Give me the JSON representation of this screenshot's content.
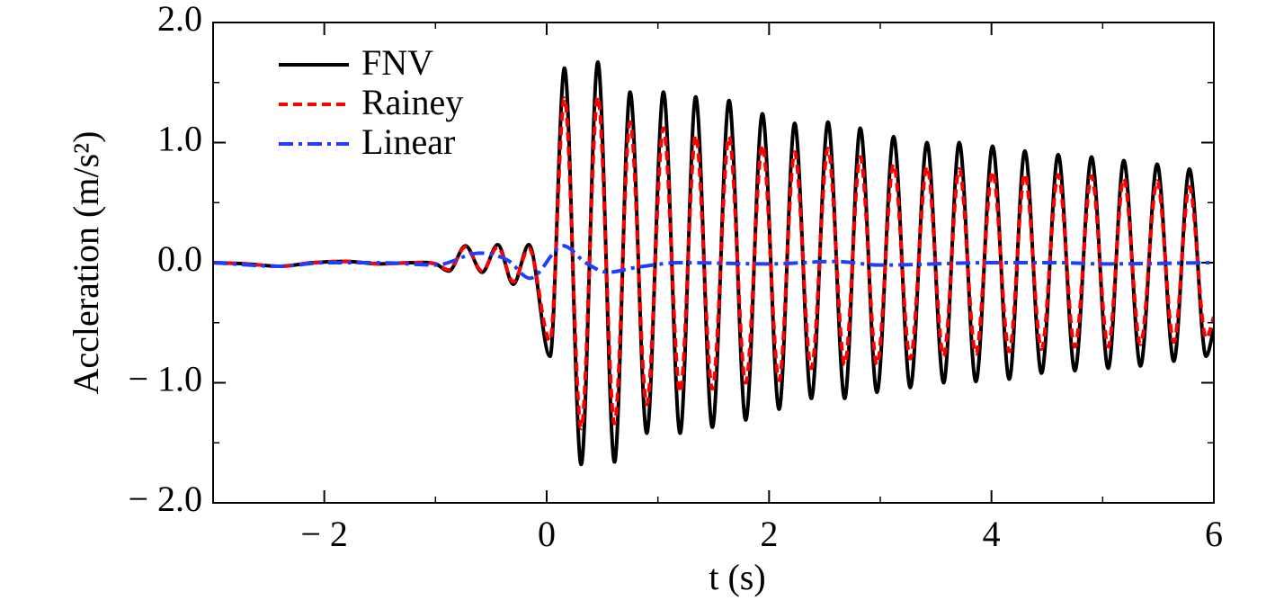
{
  "chart_data": {
    "type": "line",
    "xlabel": "t (s)",
    "ylabel": "Accleration (m/s²)",
    "xlim": [
      -3,
      6
    ],
    "ylim": [
      -2,
      2
    ],
    "xticks": [
      {
        "value": -2,
        "label": "− 2"
      },
      0,
      2,
      4,
      6
    ],
    "yticks": [
      {
        "value": -2,
        "label": "− 2.0"
      },
      {
        "value": -1,
        "label": "− 1.0"
      },
      {
        "value": 0,
        "label": "0.0"
      },
      {
        "value": 1,
        "label": "1.0"
      },
      {
        "value": 2,
        "label": "2.0"
      }
    ],
    "xminorticks": [
      -3,
      -1,
      1,
      3,
      5
    ],
    "yminorticks": [
      -1.5,
      -0.5,
      0.5,
      1.5
    ],
    "legend": "upper left",
    "series": [
      {
        "name": "FNV",
        "color": "#000000",
        "dash": "solid",
        "x": [
          -3,
          -2.7,
          -2.4,
          -2.1,
          -1.8,
          -1.5,
          -1.2,
          -1.0,
          -0.88,
          -0.73,
          -0.58,
          -0.44,
          -0.3,
          -0.16,
          0.03,
          0.16,
          0.31,
          0.46,
          0.61,
          0.75,
          0.9,
          1.05,
          1.2,
          1.34,
          1.49,
          1.64,
          1.79,
          1.94,
          2.09,
          2.23,
          2.38,
          2.53,
          2.68,
          2.82,
          2.97,
          3.12,
          3.27,
          3.42,
          3.57,
          3.71,
          3.86,
          4.01,
          4.16,
          4.3,
          4.45,
          4.6,
          4.75,
          4.9,
          5.05,
          5.19,
          5.34,
          5.49,
          5.64,
          5.78,
          5.93,
          6.0
        ],
        "values": [
          0,
          -0.01,
          -0.03,
          0,
          0.01,
          -0.01,
          0,
          -0.01,
          -0.07,
          0.14,
          -0.08,
          0.15,
          -0.18,
          0.15,
          -0.78,
          1.62,
          -1.68,
          1.67,
          -1.66,
          1.42,
          -1.42,
          1.42,
          -1.42,
          1.38,
          -1.37,
          1.35,
          -1.31,
          1.24,
          -1.22,
          1.16,
          -1.13,
          1.17,
          -1.13,
          1.12,
          -1.08,
          1.05,
          -1.04,
          1.0,
          -1.0,
          1.0,
          -0.99,
          0.97,
          -0.97,
          0.93,
          -0.92,
          0.9,
          -0.9,
          0.88,
          -0.88,
          0.85,
          -0.86,
          0.82,
          -0.82,
          0.78,
          -0.78,
          -0.55
        ]
      },
      {
        "name": "Rainey",
        "color": "#ff0000",
        "dash": "dashed",
        "x": [
          -3,
          -2.7,
          -2.4,
          -2.1,
          -1.8,
          -1.5,
          -1.2,
          -1.0,
          -0.88,
          -0.73,
          -0.58,
          -0.44,
          -0.3,
          -0.16,
          0.03,
          0.16,
          0.31,
          0.46,
          0.61,
          0.75,
          0.9,
          1.05,
          1.2,
          1.34,
          1.49,
          1.64,
          1.79,
          1.94,
          2.09,
          2.23,
          2.38,
          2.53,
          2.68,
          2.82,
          2.97,
          3.12,
          3.27,
          3.42,
          3.57,
          3.71,
          3.86,
          4.01,
          4.16,
          4.3,
          4.45,
          4.6,
          4.75,
          4.9,
          5.05,
          5.19,
          5.34,
          5.49,
          5.64,
          5.78,
          5.93,
          6.0
        ],
        "values": [
          0,
          -0.01,
          -0.03,
          0,
          0.01,
          -0.01,
          0,
          -0.01,
          -0.06,
          0.13,
          -0.07,
          0.13,
          -0.16,
          0.12,
          -0.65,
          1.37,
          -1.38,
          1.38,
          -1.34,
          1.17,
          -1.18,
          1.12,
          -1.08,
          1.06,
          -1.05,
          1.05,
          -1.0,
          0.98,
          -0.98,
          0.92,
          -0.88,
          0.95,
          -0.85,
          0.88,
          -0.85,
          0.82,
          -0.8,
          0.8,
          -0.78,
          0.78,
          -0.76,
          0.76,
          -0.74,
          0.74,
          -0.72,
          0.73,
          -0.7,
          0.72,
          -0.7,
          0.7,
          -0.68,
          0.68,
          -0.66,
          0.63,
          -0.63,
          -0.45
        ]
      },
      {
        "name": "Linear",
        "color": "#1f3fff",
        "dash": "dashdot",
        "x": [
          -3,
          -2.4,
          -2,
          -1.5,
          -1.0,
          -0.6,
          -0.35,
          -0.15,
          0.15,
          0.35,
          0.55,
          0.8,
          1.2,
          2,
          2.6,
          3,
          4,
          4.6,
          5,
          6
        ],
        "values": [
          0,
          -0.03,
          0,
          0,
          -0.02,
          0.08,
          0.02,
          -0.13,
          0.14,
          0.0,
          -0.08,
          -0.04,
          0.0,
          -0.01,
          0.01,
          -0.02,
          0,
          0.0,
          -0.01,
          0
        ]
      }
    ]
  }
}
